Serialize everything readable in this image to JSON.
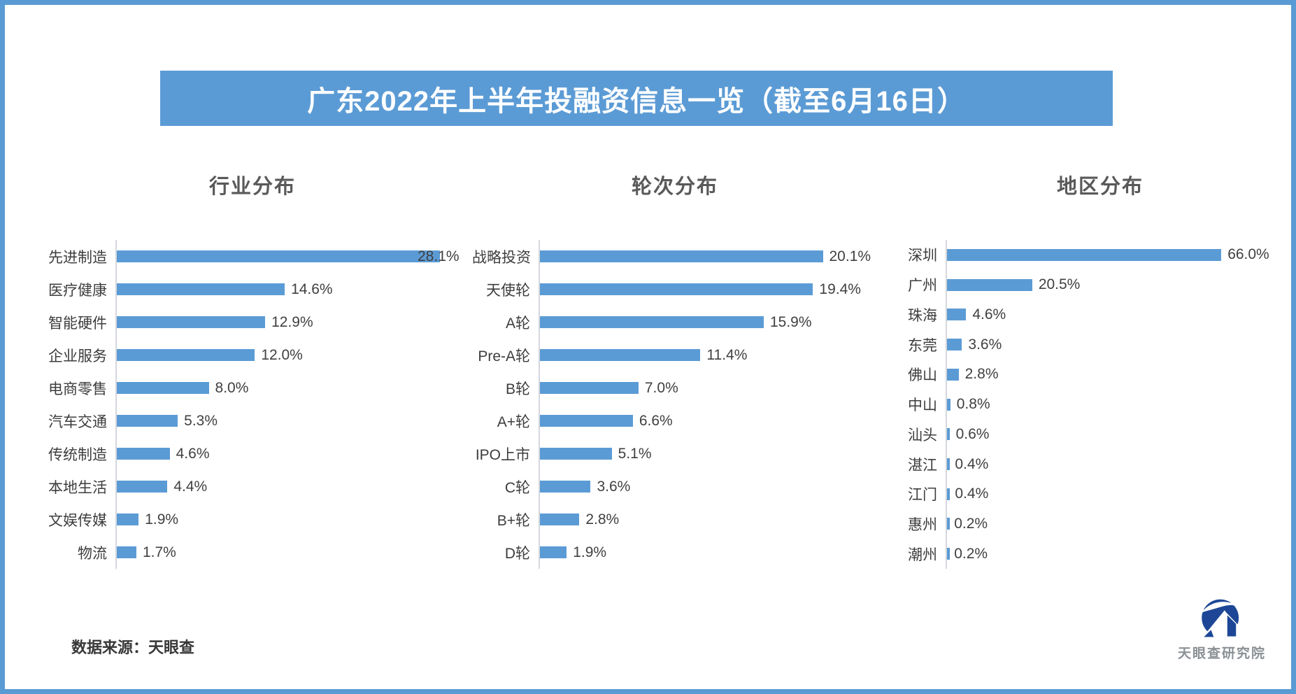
{
  "frame": {
    "border_color": "#5b9bd5",
    "background": "#ffffff"
  },
  "header": {
    "title": "广东2022年上半年投融资信息一览（截至6月16日）",
    "bg_color": "#5b9bd5",
    "text_color": "#ffffff"
  },
  "chart_data": [
    {
      "type": "bar",
      "orientation": "horizontal",
      "title": "行业分布",
      "categories": [
        "先进制造",
        "医疗健康",
        "智能硬件",
        "企业服务",
        "电商零售",
        "汽车交通",
        "传统制造",
        "本地生活",
        "文娱传媒",
        "物流"
      ],
      "values": [
        28.1,
        14.6,
        12.9,
        12.0,
        8.0,
        5.3,
        4.6,
        4.4,
        1.9,
        1.7
      ],
      "labels": [
        "28.1%",
        "14.6%",
        "12.9%",
        "12.0%",
        "8.0%",
        "5.3%",
        "4.6%",
        "4.4%",
        "1.9%",
        "1.7%"
      ],
      "xlim": [
        0,
        29.8
      ],
      "bar_color": "#5b9bd5",
      "grid": false,
      "legend": "none"
    },
    {
      "type": "bar",
      "orientation": "horizontal",
      "title": "轮次分布",
      "categories": [
        "战略投资",
        "天使轮",
        "A轮",
        "Pre-A轮",
        "B轮",
        "A+轮",
        "IPO上市",
        "C轮",
        "B+轮",
        "D轮"
      ],
      "values": [
        20.1,
        19.4,
        15.9,
        11.4,
        7.0,
        6.6,
        5.1,
        3.6,
        2.8,
        1.9
      ],
      "labels": [
        "20.1%",
        "19.4%",
        "15.9%",
        "11.4%",
        "7.0%",
        "6.6%",
        "5.1%",
        "3.6%",
        "2.8%",
        "1.9%"
      ],
      "xlim": [
        0,
        24.0
      ],
      "bar_color": "#5b9bd5",
      "grid": false,
      "legend": "none"
    },
    {
      "type": "bar",
      "orientation": "horizontal",
      "title": "地区分布",
      "categories": [
        "深圳",
        "广州",
        "珠海",
        "东莞",
        "佛山",
        "中山",
        "汕头",
        "湛江",
        "江门",
        "惠州",
        "潮州"
      ],
      "values": [
        66.0,
        20.5,
        4.6,
        3.6,
        2.8,
        0.8,
        0.6,
        0.4,
        0.4,
        0.2,
        0.2
      ],
      "labels": [
        "66.0%",
        "20.5%",
        "4.6%",
        "3.6%",
        "2.8%",
        "0.8%",
        "0.6%",
        "0.4%",
        "0.4%",
        "0.2%",
        "0.2%"
      ],
      "xlim": [
        0,
        83.3
      ],
      "bar_color": "#5b9bd5",
      "grid": false,
      "legend": "none"
    }
  ],
  "footer": {
    "source_label": "数据来源：天眼查"
  },
  "logo": {
    "text": "天眼查研究院",
    "mark_color": "#1d4796",
    "text_color": "#8b9095"
  },
  "colors": {
    "accent_blue": "#5b9bd5",
    "axis_line": "#d4d7dc",
    "chart_title": "#595959",
    "label_text": "#404040",
    "logo_blue": "#1d4796"
  }
}
